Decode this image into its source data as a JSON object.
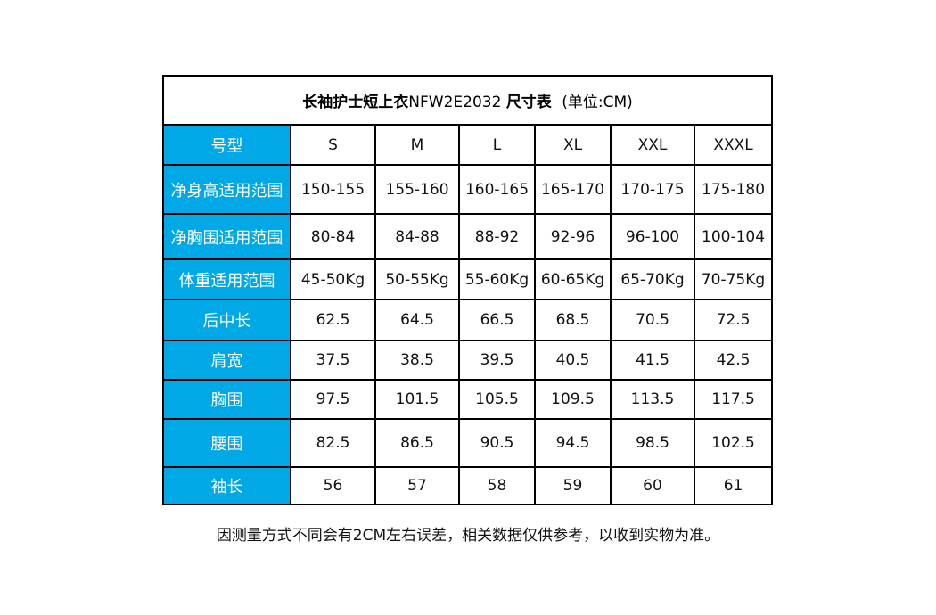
{
  "table": {
    "title_product": "长袖护士短上衣",
    "title_code": "NFW2E2032",
    "title_suffix": "尺寸表",
    "title_unit": "(单位:CM)",
    "header_label": "号型",
    "sizes": [
      "S",
      "M",
      "L",
      "XL",
      "XXL",
      "XXXL"
    ],
    "rows": [
      {
        "label": "净身高适用范围",
        "values": [
          "150-155",
          "155-160",
          "160-165",
          "165-170",
          "170-175",
          "175-180"
        ]
      },
      {
        "label": "净胸围适用范围",
        "values": [
          "80-84",
          "84-88",
          "88-92",
          "92-96",
          "96-100",
          "100-104"
        ]
      },
      {
        "label": "体重适用范围",
        "values": [
          "45-50Kg",
          "50-55Kg",
          "55-60Kg",
          "60-65Kg",
          "65-70Kg",
          "70-75Kg"
        ]
      },
      {
        "label": "后中长",
        "values": [
          "62.5",
          "64.5",
          "66.5",
          "68.5",
          "70.5",
          "72.5"
        ]
      },
      {
        "label": "肩宽",
        "values": [
          "37.5",
          "38.5",
          "39.5",
          "40.5",
          "41.5",
          "42.5"
        ]
      },
      {
        "label": "胸围",
        "values": [
          "97.5",
          "101.5",
          "105.5",
          "109.5",
          "113.5",
          "117.5"
        ]
      },
      {
        "label": "腰围",
        "values": [
          "82.5",
          "86.5",
          "90.5",
          "94.5",
          "98.5",
          "102.5"
        ]
      },
      {
        "label": "袖长",
        "values": [
          "56",
          "57",
          "58",
          "59",
          "60",
          "61"
        ]
      }
    ]
  },
  "note": "因测量方式不同会有2CM左右误差，相关数据仅供参考，以收到实物为准。",
  "colors": {
    "label_bg": "#00a8e6",
    "label_text": "#ffffff",
    "border": "#000000"
  }
}
